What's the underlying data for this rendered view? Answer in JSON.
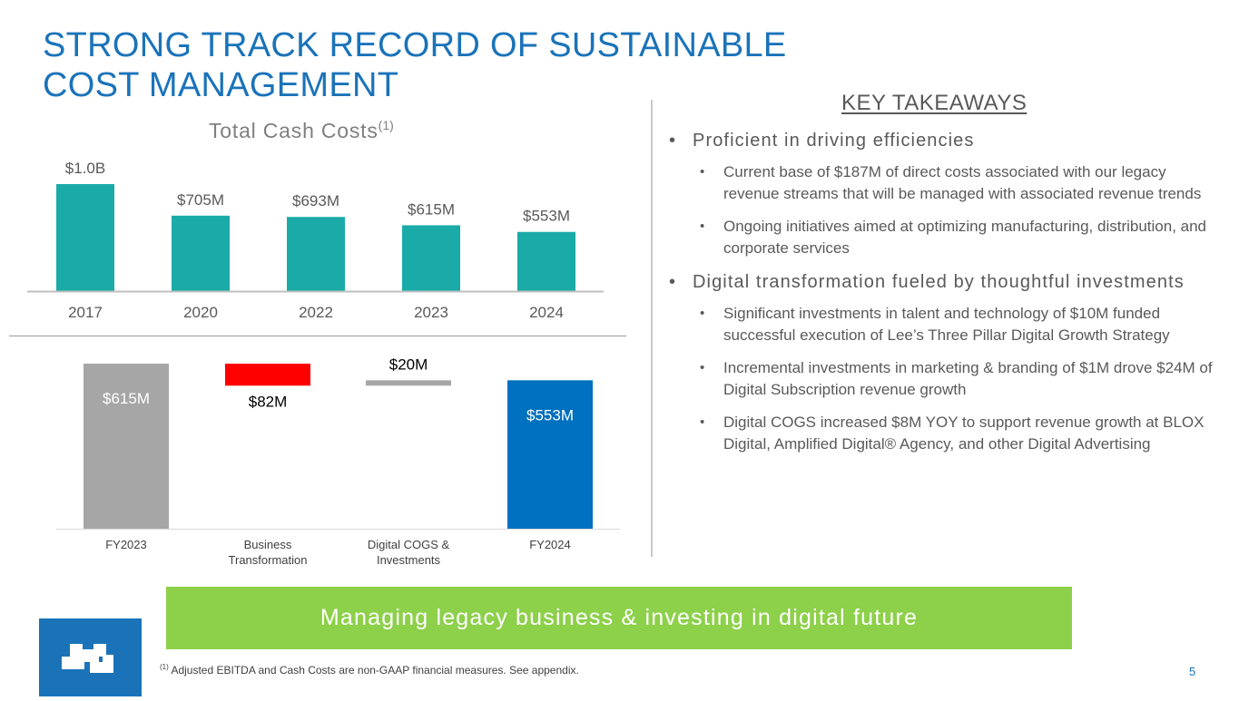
{
  "slide": {
    "title_line1": "STRONG TRACK RECORD OF SUSTAINABLE",
    "title_line2": "COST MANAGEMENT",
    "page_number": "5",
    "accent_color": "#1a73b9",
    "banner_color": "#8dd04a",
    "banner_text": "Managing legacy business & investing in digital future",
    "footnote_marker": "(1)",
    "footnote_text": "Adjusted EBITDA and Cash Costs are non-GAAP financial measures. See appendix."
  },
  "chart_data": [
    {
      "type": "bar",
      "title": "Total Cash Costs",
      "title_superscript": "(1)",
      "categories": [
        "2017",
        "2020",
        "2022",
        "2023",
        "2024"
      ],
      "values": [
        1000,
        705,
        693,
        615,
        553
      ],
      "value_labels": [
        "$1.0B",
        "$705M",
        "$693M",
        "$615M",
        "$553M"
      ],
      "unit": "$M",
      "ylim": [
        0,
        1000
      ],
      "color": "#1aaba8",
      "grid": false
    },
    {
      "type": "waterfall",
      "categories": [
        "FY2023",
        "Business Transformation",
        "Digital COGS & Investments",
        "FY2024"
      ],
      "values": [
        615,
        -82,
        20,
        553
      ],
      "value_labels": [
        "$615M",
        "$82M",
        "$20M",
        "$553M"
      ],
      "kinds": [
        "total",
        "decrease",
        "increase",
        "total"
      ],
      "colors": [
        "#a6a6a6",
        "#ff0000",
        "#a6a6a6",
        "#0070c0"
      ],
      "ylim": [
        380,
        615
      ],
      "grid": false
    }
  ],
  "key_takeaways": {
    "header": "KEY TAKEAWAYS",
    "sections": [
      {
        "text": "Proficient in driving efficiencies",
        "items": [
          "Current base of $187M of direct costs associated with our legacy revenue streams that will be managed with associated revenue trends",
          "Ongoing initiatives aimed at optimizing manufacturing, distribution, and corporate services"
        ]
      },
      {
        "text": "Digital transformation fueled by thoughtful investments",
        "items": [
          "Significant investments in talent and technology of $10M funded successful execution of Lee’s Three Pillar Digital Growth Strategy",
          "Incremental investments in marketing & branding of $1M drove $24M of Digital Subscription revenue growth",
          "Digital COGS increased $8M YOY to support revenue growth at BLOX Digital, Amplified Digital® Agency, and other Digital Advertising"
        ]
      }
    ]
  }
}
